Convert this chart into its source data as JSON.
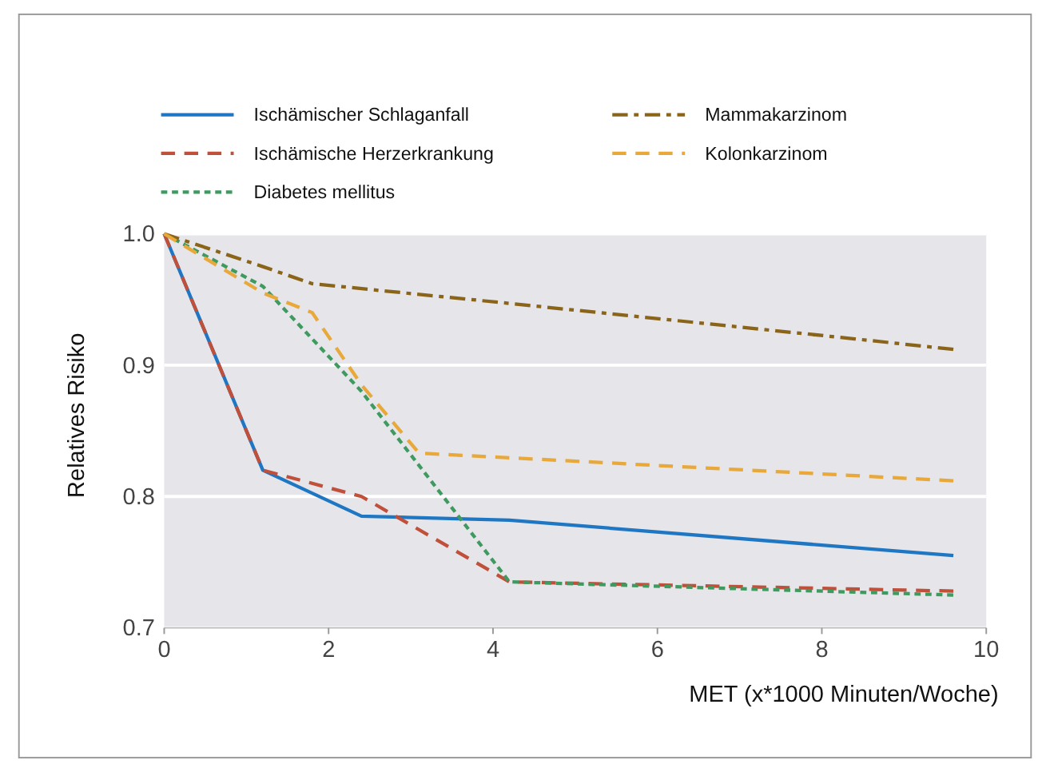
{
  "chart_data": {
    "type": "line",
    "xlabel": "MET (x*1000 Minuten/Woche)",
    "ylabel": "Relatives Risiko",
    "xlim": [
      0,
      10
    ],
    "xticks": [
      0,
      2,
      4,
      6,
      8,
      10
    ],
    "ylim": [
      0.7,
      1.0
    ],
    "yticks": [
      {
        "value": 0.7,
        "label": "0.7"
      },
      {
        "value": 0.8,
        "label": "0.8"
      },
      {
        "value": 0.9,
        "label": "0.9"
      },
      {
        "value": 1.0,
        "label": "1.0"
      }
    ],
    "grid": "y",
    "legend": "top",
    "series": [
      {
        "name": "Ischämischer Schlaganfall",
        "color": "#1f77c4",
        "line_style": "solid",
        "x": [
          0,
          1.2,
          2.4,
          4.2,
          9.6
        ],
        "values": [
          1.0,
          0.82,
          0.785,
          0.782,
          0.755
        ]
      },
      {
        "name": "Ischämische Herzerkrankung",
        "color": "#c0503a",
        "line_style": "dashed",
        "x": [
          0,
          1.2,
          2.4,
          4.2,
          9.6
        ],
        "values": [
          1.0,
          0.82,
          0.8,
          0.735,
          0.728
        ]
      },
      {
        "name": "Diabetes mellitus",
        "color": "#3f9a60",
        "line_style": "dotted",
        "x": [
          0,
          1.2,
          2.4,
          4.2,
          9.6
        ],
        "values": [
          1.0,
          0.96,
          0.88,
          0.735,
          0.725
        ]
      },
      {
        "name": "Mammakarzinom",
        "color": "#8a6418",
        "line_style": "dashdot",
        "x": [
          0,
          1.2,
          1.8,
          4.2,
          8.4,
          9.6
        ],
        "values": [
          1.0,
          0.975,
          0.962,
          0.947,
          0.92,
          0.912
        ]
      },
      {
        "name": "Kolonkarzinom",
        "color": "#e8a83a",
        "line_style": "dashed",
        "x": [
          0,
          1.2,
          1.8,
          2.4,
          3.1,
          9.6
        ],
        "values": [
          1.0,
          0.955,
          0.94,
          0.885,
          0.833,
          0.812
        ]
      }
    ]
  }
}
